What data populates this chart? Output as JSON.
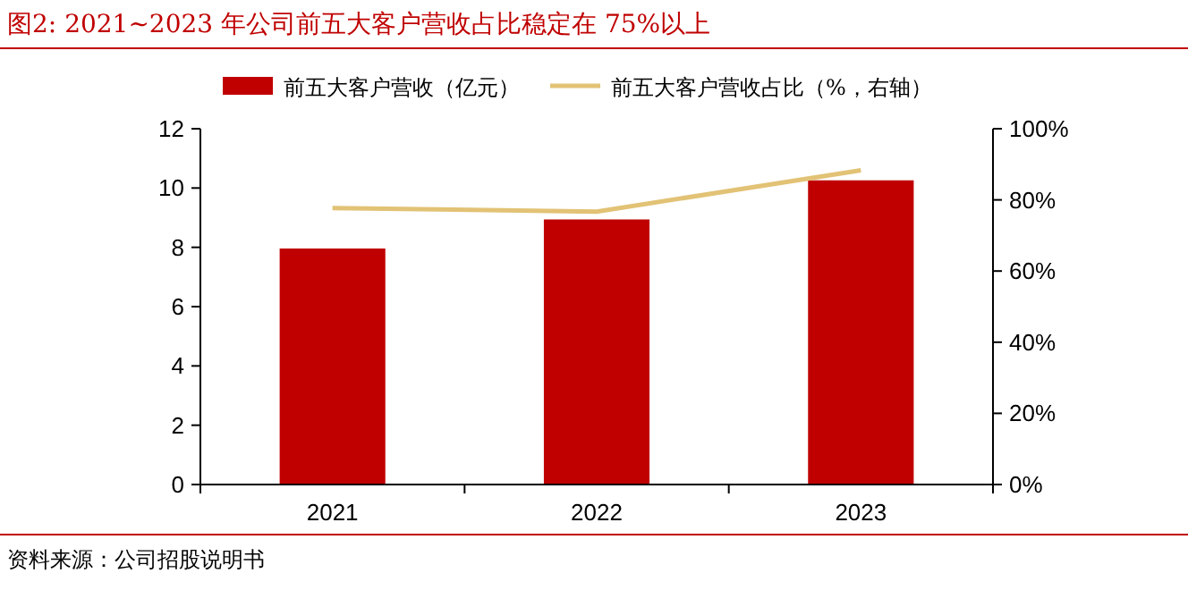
{
  "chart_data": {
    "type": "bar",
    "title": "图2:   2021~2023 年公司前五大客户营收占比稳定在 75%以上",
    "categories": [
      "2021",
      "2022",
      "2023"
    ],
    "series": [
      {
        "name": "前五大客户营收（亿元）",
        "color": "#c00000",
        "values": [
          7.96,
          8.94,
          10.26
        ]
      },
      {
        "name": "前五大客户营收占比（%，右轴）",
        "color": "#e2c275",
        "type": "line",
        "axis": "y2",
        "values": [
          77.7,
          76.7,
          88.3
        ]
      }
    ],
    "ylim": [
      0,
      12
    ],
    "yticks": [
      0,
      2,
      4,
      6,
      8,
      10,
      12
    ],
    "y2lim": [
      0,
      100
    ],
    "y2ticks": [
      {
        "value": 0,
        "label": "0%"
      },
      {
        "value": 20,
        "label": "20%"
      },
      {
        "value": 40,
        "label": "40%"
      },
      {
        "value": 60,
        "label": "60%"
      },
      {
        "value": 80,
        "label": "80%"
      },
      {
        "value": 100,
        "label": "100%"
      }
    ],
    "legend": "top",
    "grid": false,
    "marker": "none",
    "annotations": [
      "资料来源：公司招股说明书"
    ]
  }
}
